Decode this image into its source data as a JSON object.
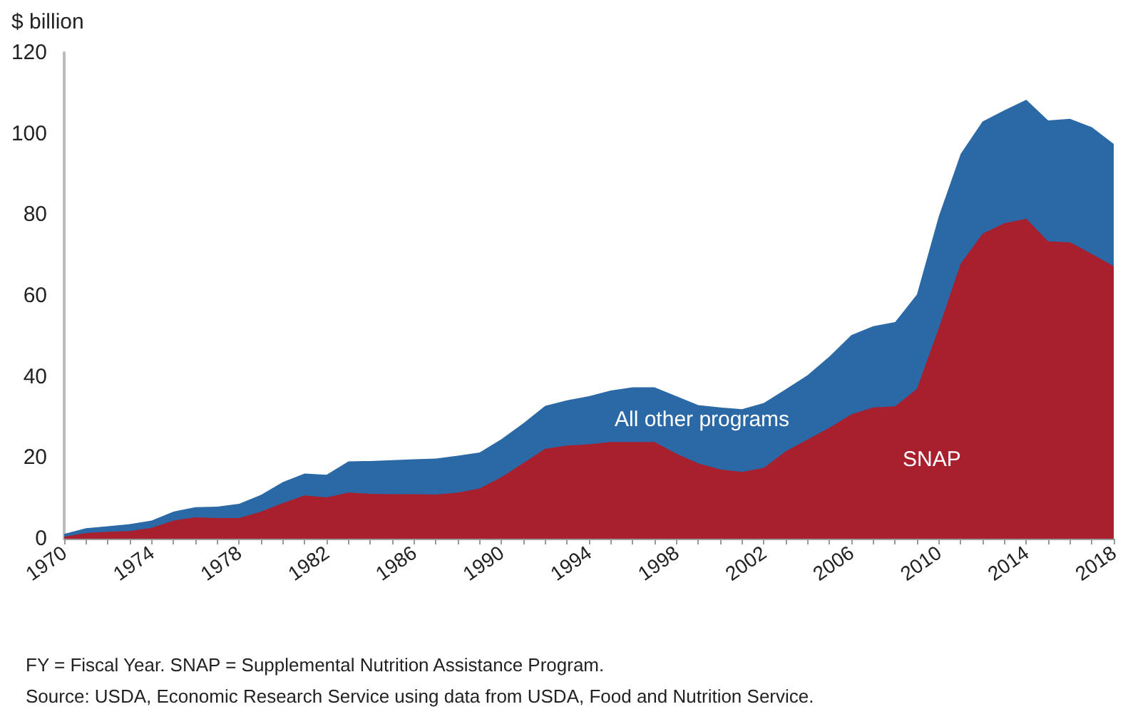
{
  "chart_data": {
    "type": "area",
    "stacked": true,
    "ylabel": "$ billion",
    "x": [
      1970,
      1971,
      1972,
      1973,
      1974,
      1975,
      1976,
      1977,
      1978,
      1979,
      1980,
      1981,
      1982,
      1983,
      1984,
      1985,
      1986,
      1987,
      1988,
      1989,
      1990,
      1991,
      1992,
      1993,
      1994,
      1995,
      1996,
      1997,
      1998,
      1999,
      2000,
      2001,
      2002,
      2003,
      2004,
      2005,
      2006,
      2007,
      2008,
      2009,
      2010,
      2011,
      2012,
      2013,
      2014,
      2015,
      2016,
      2017,
      2018
    ],
    "series": [
      {
        "name": "SNAP",
        "color": "#a8202e",
        "values": [
          0.5,
          1.4,
          1.7,
          1.9,
          2.7,
          4.5,
          5.3,
          5.1,
          5.1,
          6.7,
          8.8,
          10.7,
          10.2,
          11.4,
          11.1,
          11.0,
          11.0,
          10.9,
          11.4,
          12.4,
          15.2,
          18.7,
          22.2,
          23.0,
          23.3,
          23.9,
          23.9,
          23.9,
          21.0,
          18.6,
          17.1,
          16.5,
          17.5,
          21.6,
          24.5,
          27.4,
          30.7,
          32.4,
          32.7,
          37.0,
          52.0,
          67.9,
          75.3,
          77.9,
          79.0,
          73.4,
          73.2,
          70.3,
          67.3
        ]
      },
      {
        "name": "All other programs",
        "color": "#2a69a6",
        "values": [
          0.7,
          1.2,
          1.4,
          1.7,
          1.8,
          2.2,
          2.5,
          2.8,
          3.5,
          4.1,
          5.2,
          5.4,
          5.6,
          7.7,
          8.1,
          8.4,
          8.6,
          8.9,
          9.1,
          8.9,
          9.4,
          9.8,
          10.6,
          11.2,
          11.9,
          12.7,
          13.5,
          13.5,
          14.2,
          14.4,
          15.3,
          15.5,
          16.0,
          15.3,
          15.9,
          17.6,
          19.6,
          20.1,
          20.8,
          23.3,
          27.6,
          27.1,
          27.7,
          27.9,
          29.4,
          29.9,
          30.5,
          31.3,
          30.2
        ]
      }
    ],
    "xlim": [
      1970,
      2018
    ],
    "xticks": [
      1970,
      {
        "value": 1971,
        "label": null
      },
      {
        "value": 1972,
        "label": null
      },
      {
        "value": 1973,
        "label": null
      },
      1974,
      {
        "value": 1975,
        "label": null
      },
      {
        "value": 1976,
        "label": null
      },
      {
        "value": 1977,
        "label": null
      },
      1978,
      {
        "value": 1979,
        "label": null
      },
      {
        "value": 1980,
        "label": null
      },
      {
        "value": 1981,
        "label": null
      },
      1982,
      {
        "value": 1983,
        "label": null
      },
      {
        "value": 1984,
        "label": null
      },
      {
        "value": 1985,
        "label": null
      },
      1986,
      {
        "value": 1987,
        "label": null
      },
      {
        "value": 1988,
        "label": null
      },
      {
        "value": 1989,
        "label": null
      },
      1990,
      {
        "value": 1991,
        "label": null
      },
      {
        "value": 1992,
        "label": null
      },
      {
        "value": 1993,
        "label": null
      },
      1994,
      {
        "value": 1995,
        "label": null
      },
      {
        "value": 1996,
        "label": null
      },
      {
        "value": 1997,
        "label": null
      },
      1998,
      {
        "value": 1999,
        "label": null
      },
      {
        "value": 2000,
        "label": null
      },
      {
        "value": 2001,
        "label": null
      },
      2002,
      {
        "value": 2003,
        "label": null
      },
      {
        "value": 2004,
        "label": null
      },
      {
        "value": 2005,
        "label": null
      },
      2006,
      {
        "value": 2007,
        "label": null
      },
      {
        "value": 2008,
        "label": null
      },
      {
        "value": 2009,
        "label": null
      },
      2010,
      {
        "value": 2011,
        "label": null
      },
      {
        "value": 2012,
        "label": null
      },
      {
        "value": 2013,
        "label": null
      },
      2014,
      {
        "value": 2015,
        "label": null
      },
      {
        "value": 2016,
        "label": null
      },
      {
        "value": 2017,
        "label": null
      },
      2018
    ],
    "ylim": [
      0,
      120
    ],
    "yticks": [
      0,
      20,
      40,
      60,
      80,
      100,
      120
    ],
    "grid": false,
    "legend": false,
    "annotations": [
      "FY = Fiscal Year. SNAP = Supplemental Nutrition Assistance Program.",
      "Source: USDA, Economic Research Service using data from USDA, Food and Nutrition Service."
    ]
  }
}
